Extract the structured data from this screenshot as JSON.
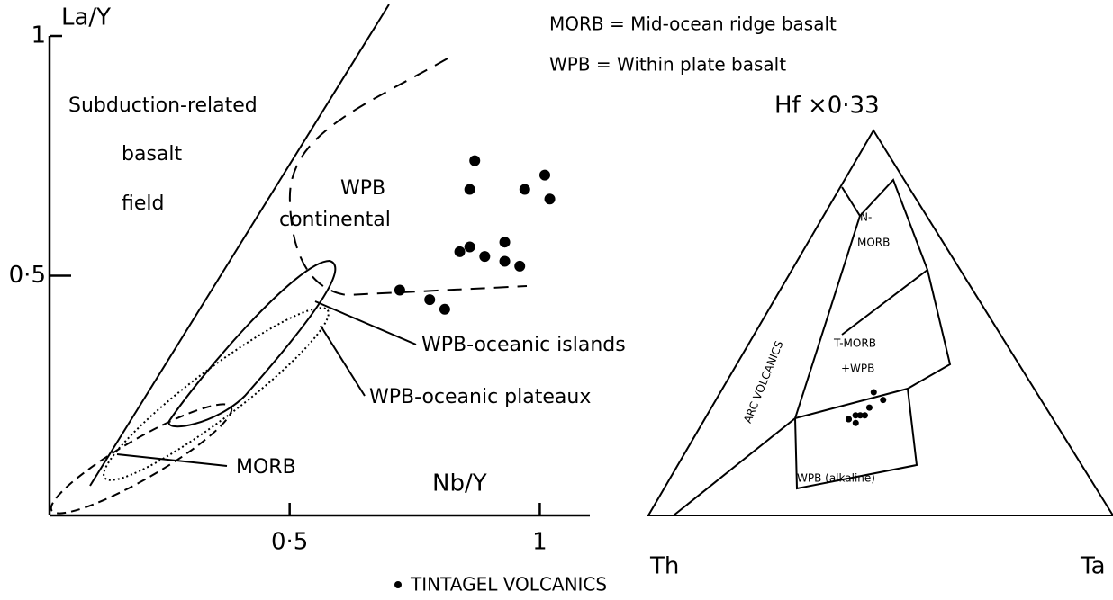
{
  "chart_data": [
    {
      "type": "scatter",
      "x_label": "Nb/Y",
      "y_label": "La/Y",
      "xlim": [
        0.02,
        1.1
      ],
      "ylim": [
        0,
        1
      ],
      "xticks": [
        {
          "value": 0.5,
          "label": "0·5"
        },
        {
          "value": 1,
          "label": "1"
        }
      ],
      "yticks": [
        {
          "value": 0.5,
          "label": "0·5"
        },
        {
          "value": 1,
          "label": "1"
        }
      ],
      "series": [
        {
          "name": "TINTAGEL VOLCANICS",
          "color": "#000000",
          "x": [
            0.72,
            0.78,
            0.81,
            0.87,
            0.86,
            0.86,
            0.84,
            0.89,
            0.93,
            0.93,
            0.96,
            0.97,
            1.01,
            1.02
          ],
          "values": [
            0.47,
            0.45,
            0.43,
            0.74,
            0.68,
            0.56,
            0.55,
            0.54,
            0.57,
            0.53,
            0.52,
            0.68,
            0.71,
            0.66
          ]
        }
      ],
      "annotations": [
        "Subduction-related",
        "basalt",
        "field",
        "WPB",
        "continental",
        "WPB-oceanic islands",
        "WPB-oceanic plateaux",
        "MORB"
      ],
      "notes": [
        "MORB = Mid-ocean ridge basalt",
        "WPB  = Within plate basalt"
      ]
    },
    {
      "type": "ternary",
      "apex_labels": [
        "Hf ×0·33",
        "Th",
        "Ta"
      ],
      "series": [
        {
          "color": "#000000",
          "hf": [
            0.25,
            0.25,
            0.26,
            0.26,
            0.26,
            0.32,
            0.3,
            0.24,
            0.28
          ],
          "ta": [
            0.31,
            0.31,
            0.32,
            0.33,
            0.34,
            0.33,
            0.36,
            0.33,
            0.34
          ],
          "th": [
            0.44,
            0.44,
            0.42,
            0.41,
            0.4,
            0.35,
            0.34,
            0.43,
            0.38
          ]
        }
      ],
      "annotations": [
        "N-",
        "MORB",
        "T-MORB",
        "+WPB",
        "ARC VOLCANICS",
        "WPB (alkaline)"
      ]
    }
  ]
}
